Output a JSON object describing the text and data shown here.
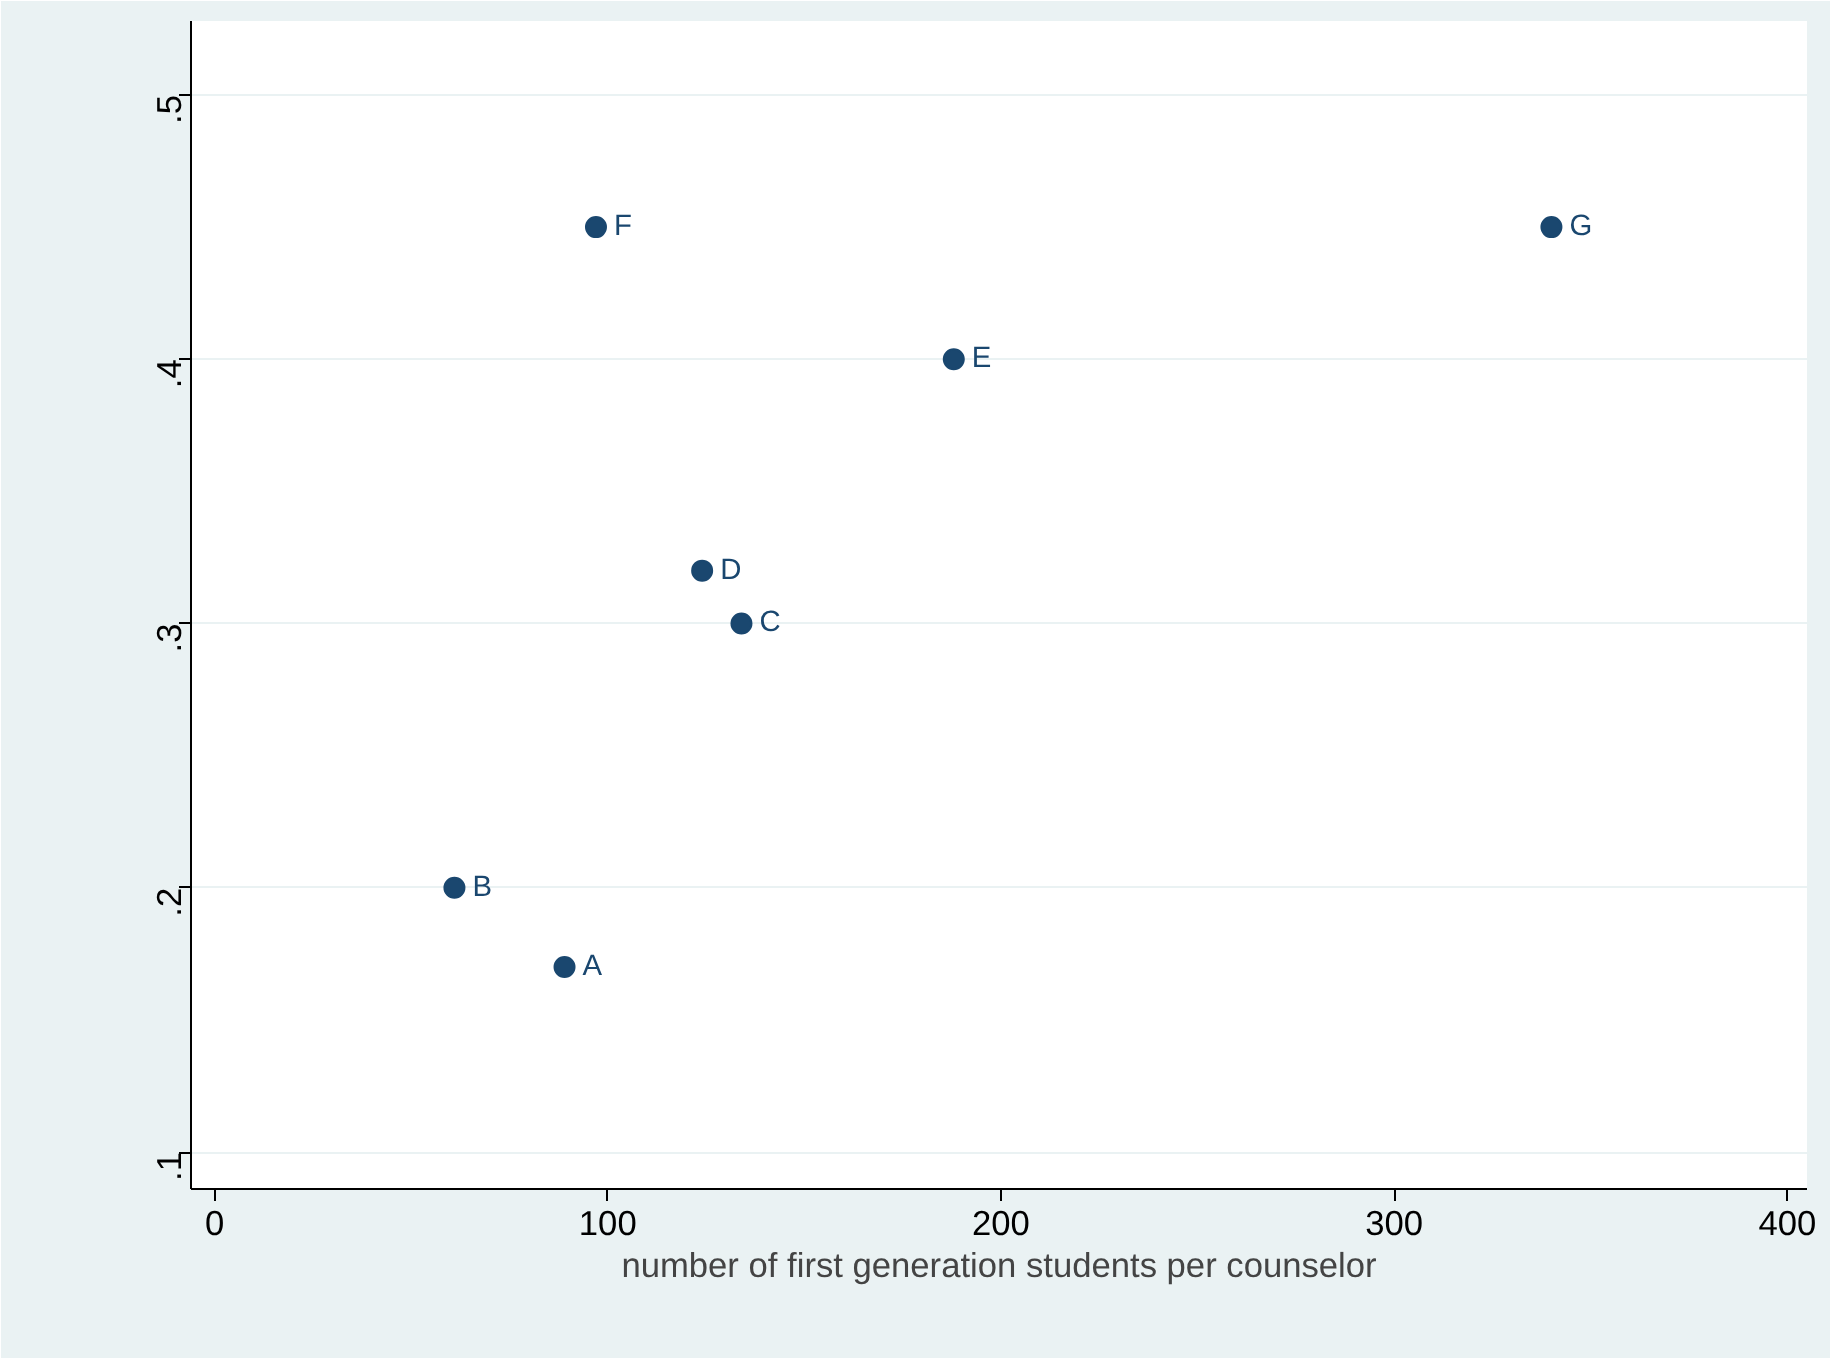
{
  "chart_data": {
    "type": "scatter",
    "xlabel": "number of first generation students per counselor",
    "x": [
      89,
      61,
      134,
      124,
      188,
      97,
      340
    ],
    "series": [
      {
        "color": "#1a476f",
        "values": [
          0.17,
          0.2,
          0.3,
          0.32,
          0.4,
          0.45,
          0.45
        ]
      }
    ],
    "annotations": [
      {
        "text": "A",
        "x": 89,
        "y": 0.17
      },
      {
        "text": "B",
        "x": 61,
        "y": 0.2
      },
      {
        "text": "C",
        "x": 134,
        "y": 0.3
      },
      {
        "text": "D",
        "x": 124,
        "y": 0.32
      },
      {
        "text": "E",
        "x": 188,
        "y": 0.4
      },
      {
        "text": "F",
        "x": 97,
        "y": 0.45
      },
      {
        "text": "G",
        "x": 340,
        "y": 0.45
      }
    ],
    "xlim": [
      -6,
      405
    ],
    "xticks": [
      0,
      100,
      200,
      300,
      400
    ],
    "ylim": [
      0.086,
      0.528
    ],
    "yticks": [
      {
        "value": 0.1,
        "label": ".1"
      },
      {
        "value": 0.2,
        "label": ".2"
      },
      {
        "value": 0.3,
        "label": ".3"
      },
      {
        "value": 0.4,
        "label": ".4"
      },
      {
        "value": 0.5,
        "label": ".5"
      }
    ],
    "grid": "y",
    "marker": "circle"
  }
}
